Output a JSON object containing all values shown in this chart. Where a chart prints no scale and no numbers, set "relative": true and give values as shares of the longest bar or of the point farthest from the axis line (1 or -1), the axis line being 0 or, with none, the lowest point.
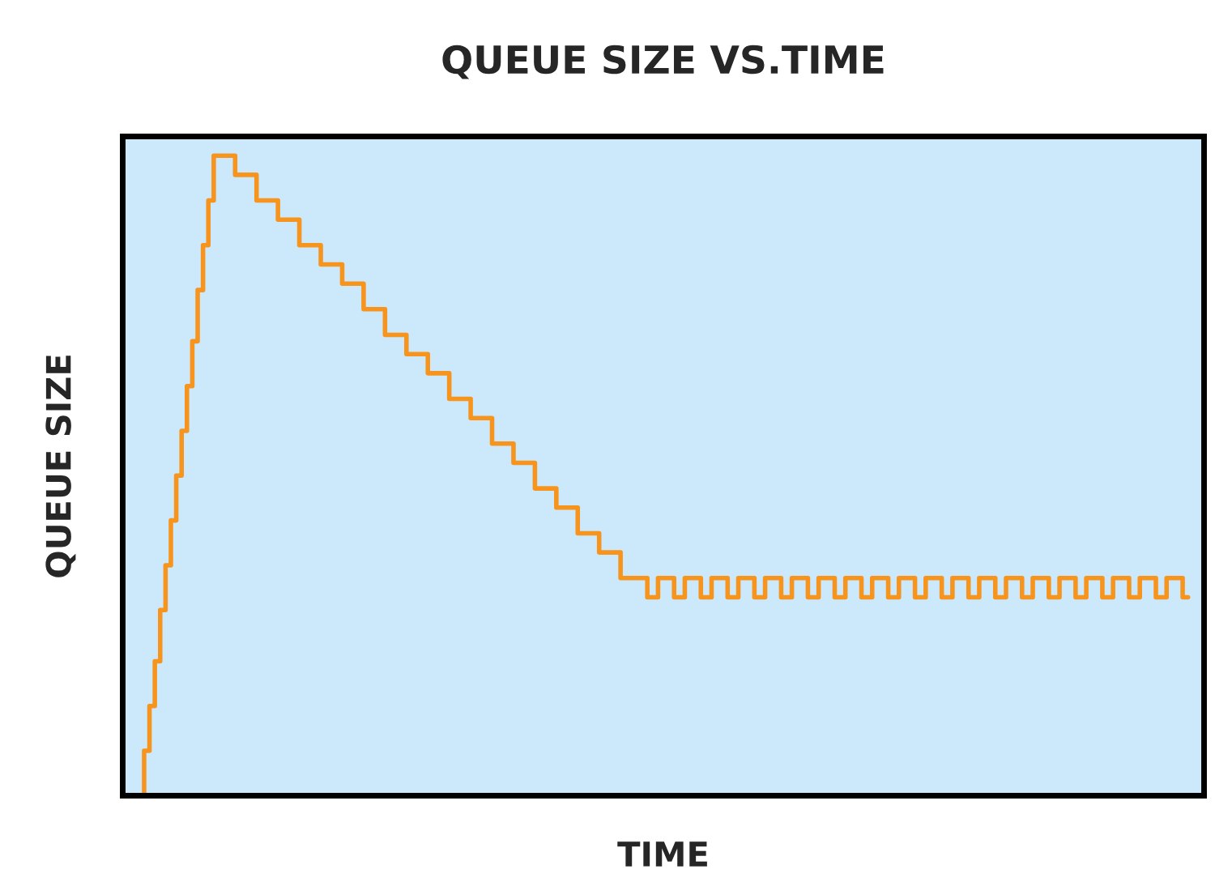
{
  "chart_data": {
    "type": "step",
    "title": "QUEUE SIZE VS.TIME",
    "xlabel": "TIME",
    "ylabel": "QUEUE SIZE",
    "relative": true,
    "tick_labels": false,
    "categories": [
      null,
      null,
      null,
      null,
      null,
      null,
      null,
      null,
      null,
      null,
      null,
      null,
      null,
      null,
      null,
      null,
      null,
      null,
      null,
      null,
      null,
      null,
      null,
      null,
      null,
      null,
      null,
      null,
      null,
      null,
      null,
      null,
      null,
      null,
      null,
      null,
      null,
      null,
      null,
      null,
      null,
      null,
      null,
      null,
      null,
      null,
      null,
      null,
      null,
      null,
      null,
      null,
      null,
      null,
      null,
      null,
      null,
      null,
      null,
      null,
      null,
      null,
      null,
      null,
      null,
      null,
      null,
      null,
      null,
      null,
      null,
      null,
      null,
      null,
      null,
      null,
      null,
      null,
      null,
      null,
      null,
      null,
      null,
      null,
      null,
      null,
      null,
      null,
      null,
      null,
      null,
      null,
      null,
      null,
      null,
      null,
      null,
      null,
      null,
      null,
      null,
      null,
      null,
      null,
      null,
      null,
      null,
      null,
      null,
      null,
      null,
      null,
      null,
      null,
      null,
      null,
      null,
      null,
      null,
      null,
      null,
      null,
      null,
      null,
      null,
      null,
      null,
      null,
      null,
      null,
      null,
      null,
      null,
      null,
      null,
      null,
      null,
      null,
      null,
      null,
      null,
      null,
      null,
      null,
      null,
      null,
      null,
      null,
      null,
      null,
      null,
      null,
      null,
      null,
      null,
      null,
      null,
      null,
      null,
      null,
      null,
      null,
      null,
      null,
      null,
      null,
      null,
      null,
      null,
      null,
      null,
      null,
      null,
      null,
      null,
      null,
      null,
      null,
      null,
      null,
      null,
      null,
      null,
      null,
      null,
      null,
      null,
      null,
      null,
      null,
      null,
      null,
      null,
      null,
      null,
      null,
      null,
      null,
      null,
      null
    ],
    "series": [
      {
        "color": "#f7941d",
        "values": [
          null,
          null,
          null,
          0,
          0.07,
          0.14,
          0.21,
          0.29,
          0.36,
          0.43,
          0.5,
          0.57,
          0.64,
          0.71,
          0.79,
          0.86,
          0.93,
          1,
          1,
          1,
          1,
          0.97,
          0.97,
          0.97,
          0.97,
          0.93,
          0.93,
          0.93,
          0.93,
          0.9,
          0.9,
          0.9,
          0.9,
          0.86,
          0.86,
          0.86,
          0.86,
          0.83,
          0.83,
          0.83,
          0.83,
          0.8,
          0.8,
          0.8,
          0.8,
          0.76,
          0.76,
          0.76,
          0.76,
          0.72,
          0.72,
          0.72,
          0.72,
          0.69,
          0.69,
          0.69,
          0.69,
          0.66,
          0.66,
          0.66,
          0.66,
          0.62,
          0.62,
          0.62,
          0.62,
          0.59,
          0.59,
          0.59,
          0.59,
          0.55,
          0.55,
          0.55,
          0.55,
          0.52,
          0.52,
          0.52,
          0.52,
          0.48,
          0.48,
          0.48,
          0.48,
          0.45,
          0.45,
          0.45,
          0.45,
          0.41,
          0.41,
          0.41,
          0.41,
          0.38,
          0.38,
          0.38,
          0.38,
          0.34,
          0.34,
          0.34,
          0.34,
          0.34,
          0.31,
          0.31,
          0.34,
          0.34,
          0.34,
          0.31,
          0.31,
          0.34,
          0.34,
          0.34,
          0.31,
          0.31,
          0.34,
          0.34,
          0.34,
          0.31,
          0.31,
          0.34,
          0.34,
          0.34,
          0.31,
          0.31,
          0.34,
          0.34,
          0.34,
          0.31,
          0.31,
          0.34,
          0.34,
          0.34,
          0.31,
          0.31,
          0.34,
          0.34,
          0.34,
          0.31,
          0.31,
          0.34,
          0.34,
          0.34,
          0.31,
          0.31,
          0.34,
          0.34,
          0.34,
          0.31,
          0.31,
          0.34,
          0.34,
          0.34,
          0.31,
          0.31,
          0.34,
          0.34,
          0.34,
          0.31,
          0.31,
          0.34,
          0.34,
          0.34,
          0.31,
          0.31,
          0.34,
          0.34,
          0.34,
          0.31,
          0.31,
          0.34,
          0.34,
          0.34,
          0.31,
          0.31,
          0.34,
          0.34,
          0.34,
          0.31,
          0.31,
          0.34,
          0.34,
          0.34,
          0.31,
          0.31,
          0.34,
          0.34,
          0.34,
          0.31,
          0.31,
          0.34,
          0.34,
          0.34,
          0.31,
          0.31,
          0.34,
          0.34,
          0.34,
          0.31,
          0.31,
          0.34,
          0.34,
          0.34,
          0.31,
          0.31
        ]
      }
    ]
  }
}
